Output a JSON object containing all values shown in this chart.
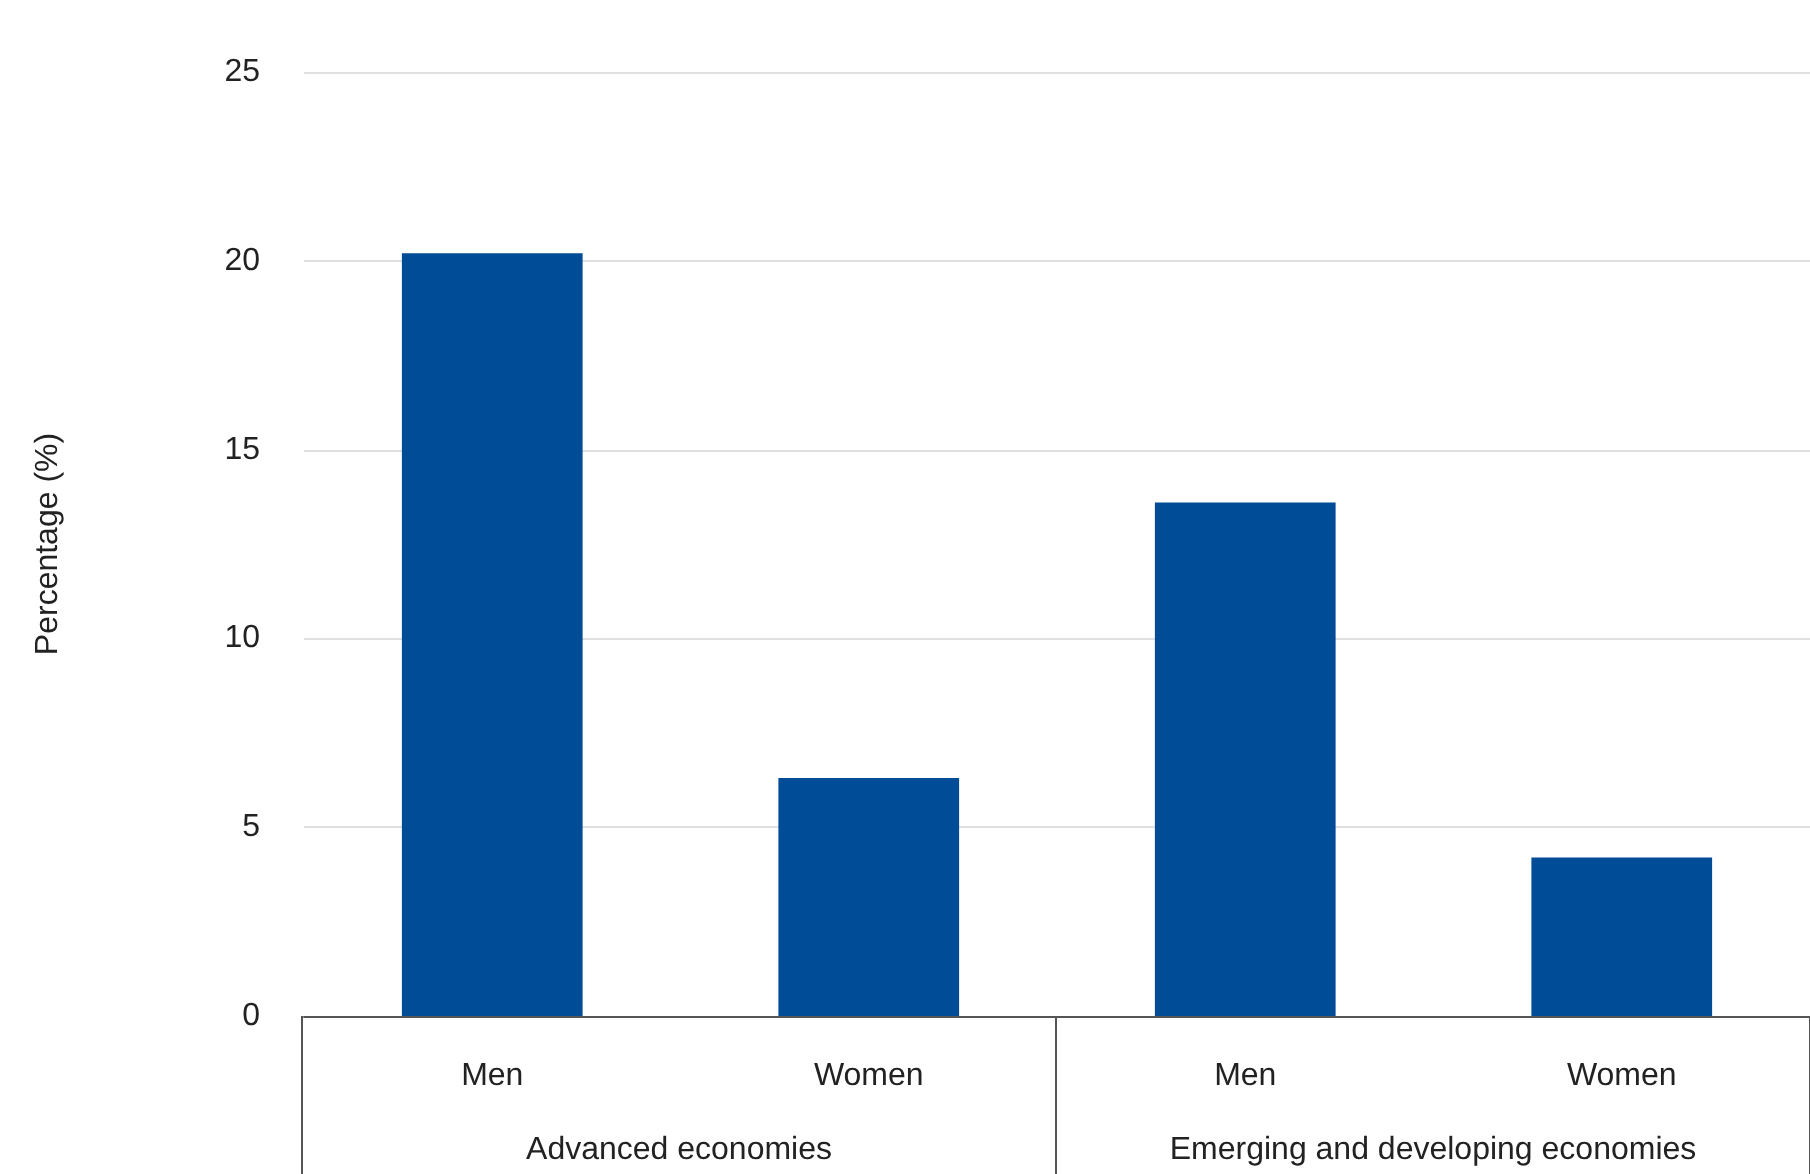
{
  "chart_data": {
    "type": "bar",
    "ylabel": "Percentage (%)",
    "categories": [
      "Men",
      "Women",
      "Men",
      "Women"
    ],
    "values": [
      20.2,
      6.3,
      13.6,
      4.2
    ],
    "color": "#004c97",
    "ylim": [
      0,
      25
    ],
    "yticks": [
      0,
      5,
      10,
      15,
      20,
      25
    ],
    "grid": "y",
    "annotations": [
      "Advanced economies",
      "Emerging and developing economies"
    ]
  }
}
